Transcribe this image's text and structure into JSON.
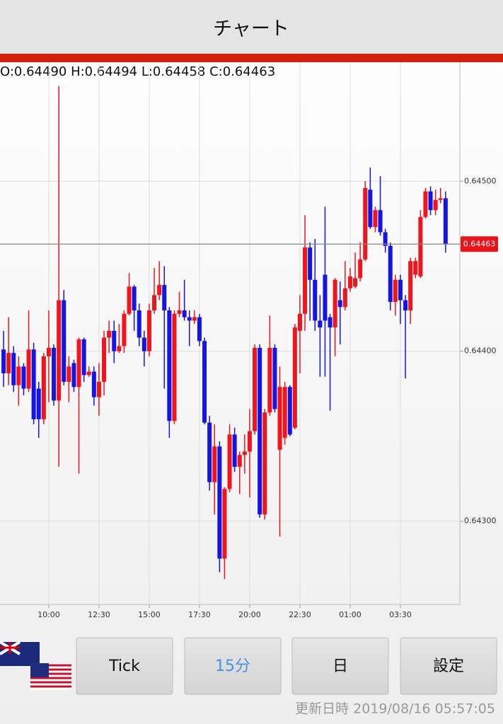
{
  "header": {
    "title": "チャート"
  },
  "chart_data": {
    "type": "candlestick",
    "ohlc_text": "O:0.64490 H:0.64494 L:0.64458 C:0.64463",
    "categories": [
      null,
      null,
      null,
      null,
      null,
      null,
      null,
      null,
      null,
      "10:00",
      null,
      null,
      null,
      null,
      null,
      null,
      null,
      null,
      null,
      "12:30",
      null,
      null,
      null,
      null,
      null,
      null,
      null,
      null,
      null,
      "15:00",
      null,
      null,
      null,
      null,
      null,
      null,
      null,
      null,
      null,
      "17:30",
      null,
      null,
      null,
      null,
      null,
      null,
      null,
      null,
      null,
      "20:00",
      null,
      null,
      null,
      null,
      null,
      null,
      null,
      null,
      null,
      "22:30",
      null,
      null,
      null,
      null,
      null,
      null,
      null,
      null,
      null,
      "01:00",
      null,
      null,
      null,
      null,
      null,
      null,
      null,
      null,
      null,
      "03:30",
      null,
      null,
      null,
      null,
      null,
      null,
      null,
      null,
      null
    ],
    "open": [
      0.64401,
      0.64387,
      0.64399,
      0.6438,
      0.64391,
      0.64378,
      0.64401,
      0.64378,
      0.6436,
      0.64397,
      0.64402,
      0.64371,
      0.6443,
      0.64382,
      0.64393,
      0.64379,
      0.64407,
      0.64386,
      0.64388,
      0.64373,
      0.64382,
      0.64408,
      0.64412,
      0.644,
      0.64403,
      0.64422,
      0.64438,
      0.64424,
      0.64408,
      0.644,
      0.64424,
      0.64433,
      0.64439,
      0.64424,
      0.64359,
      0.64422,
      0.64424,
      0.6442,
      0.64418,
      0.6442,
      0.64406,
      0.64358,
      0.64323,
      0.64344,
      0.64278,
      0.64319,
      0.64351,
      0.64332,
      0.64339,
      0.64341,
      0.64353,
      0.64402,
      0.64304,
      0.64364,
      0.64402,
      0.64342,
      0.64349,
      0.64379,
      0.64355,
      0.64412,
      0.64422,
      0.64461,
      0.64442,
      0.64418,
      0.64445,
      0.6442,
      0.64414,
      0.6443,
      0.64426,
      0.64437,
      0.64438,
      0.64443,
      0.64454,
      0.64495,
      0.64473,
      0.64483,
      0.6447,
      0.64462,
      0.64429,
      0.64442,
      0.6443,
      0.64424,
      0.64445,
      0.64444,
      0.64479,
      0.64494,
      0.64483,
      0.64489,
      0.6449
    ],
    "high": [
      0.64412,
      0.6442,
      0.64403,
      0.64397,
      0.64393,
      0.64424,
      0.64405,
      0.64382,
      0.64399,
      0.64424,
      0.64404,
      0.64556,
      0.64436,
      0.64397,
      0.64395,
      0.64408,
      0.64408,
      0.64391,
      0.64391,
      0.64393,
      0.64412,
      0.64418,
      0.64418,
      0.64416,
      0.64424,
      0.64446,
      0.64439,
      0.64428,
      0.64412,
      0.64428,
      0.64449,
      0.64453,
      0.6445,
      0.64426,
      0.64424,
      0.64435,
      0.64442,
      0.64424,
      0.64424,
      0.64422,
      0.64408,
      0.64362,
      0.64357,
      0.64347,
      0.6432,
      0.64357,
      0.64355,
      0.64341,
      0.64351,
      0.64366,
      0.64404,
      0.64404,
      0.64366,
      0.64421,
      0.64404,
      0.64391,
      0.64382,
      0.6438,
      0.64416,
      0.64433,
      0.6448,
      0.64464,
      0.64466,
      0.64433,
      0.64485,
      0.64422,
      0.64443,
      0.64441,
      0.64453,
      0.64449,
      0.64458,
      0.64464,
      0.645,
      0.64508,
      0.64485,
      0.64503,
      0.64472,
      0.64464,
      0.64445,
      0.64445,
      0.64433,
      0.64455,
      0.64455,
      0.64483,
      0.64496,
      0.64497,
      0.64495,
      0.64496,
      0.64494
    ],
    "low": [
      0.64379,
      0.6438,
      0.64376,
      0.64368,
      0.64374,
      0.64376,
      0.64357,
      0.64349,
      0.64357,
      0.6437,
      0.64368,
      0.64332,
      0.6438,
      0.6437,
      0.64376,
      0.64328,
      0.64382,
      0.64385,
      0.64368,
      0.64362,
      0.64374,
      0.64399,
      0.64393,
      0.64399,
      0.64399,
      0.64421,
      0.64412,
      0.64403,
      0.64391,
      0.64397,
      0.64422,
      0.6443,
      0.64378,
      0.64349,
      0.64357,
      0.6442,
      0.64418,
      0.64403,
      0.64416,
      0.64403,
      0.64357,
      0.64318,
      0.64304,
      0.6427,
      0.64266,
      0.64317,
      0.64329,
      0.64316,
      0.64328,
      0.64314,
      0.64351,
      0.64302,
      0.64301,
      0.64362,
      0.64364,
      0.64291,
      0.64345,
      0.6435,
      0.64354,
      0.64387,
      0.64412,
      0.64418,
      0.64412,
      0.64385,
      0.64385,
      0.64365,
      0.64397,
      0.64404,
      0.64424,
      0.64435,
      0.64437,
      0.64441,
      0.64453,
      0.64472,
      0.6447,
      0.64468,
      0.64458,
      0.64424,
      0.64421,
      0.64416,
      0.64384,
      0.64416,
      0.64443,
      0.64443,
      0.64478,
      0.6448,
      0.6448,
      0.64487,
      0.64458
    ],
    "close": [
      0.64387,
      0.64399,
      0.6438,
      0.64391,
      0.64378,
      0.64401,
      0.6436,
      0.6436,
      0.64397,
      0.64402,
      0.64371,
      0.6443,
      0.64382,
      0.64391,
      0.64379,
      0.64407,
      0.64386,
      0.64388,
      0.64373,
      0.64382,
      0.64408,
      0.64412,
      0.644,
      0.64403,
      0.64422,
      0.64438,
      0.64424,
      0.64408,
      0.644,
      0.64424,
      0.64433,
      0.64439,
      0.64424,
      0.64359,
      0.64422,
      0.64424,
      0.6442,
      0.64418,
      0.6442,
      0.64406,
      0.64358,
      0.64323,
      0.64344,
      0.64278,
      0.64319,
      0.64351,
      0.64332,
      0.64339,
      0.64341,
      0.64353,
      0.64402,
      0.64304,
      0.64364,
      0.64402,
      0.64366,
      0.64379,
      0.64379,
      0.64351,
      0.64414,
      0.64422,
      0.64461,
      0.64442,
      0.64418,
      0.64414,
      0.64418,
      0.64414,
      0.64442,
      0.64426,
      0.64437,
      0.64444,
      0.64443,
      0.64454,
      0.64496,
      0.64473,
      0.64483,
      0.6447,
      0.64462,
      0.64429,
      0.64442,
      0.6443,
      0.64424,
      0.64453,
      0.64453,
      0.64479,
      0.64494,
      0.64483,
      0.64489,
      0.6449,
      0.64463
    ],
    "up_color": "#f0141c",
    "down_color": "#1414e6",
    "ylim": [
      0.64251,
      0.6457
    ],
    "yticks": [
      {
        "value": 0.643,
        "label": "0.64300"
      },
      {
        "value": 0.644,
        "label": "0.64400"
      },
      {
        "value": 0.645,
        "label": "0.64500"
      }
    ],
    "current_price": 0.64463,
    "grid": true
  },
  "buttons": [
    "Tick",
    "15分",
    "日",
    "設定"
  ],
  "footer": "更新日時 2019/08/16 05:57:05"
}
